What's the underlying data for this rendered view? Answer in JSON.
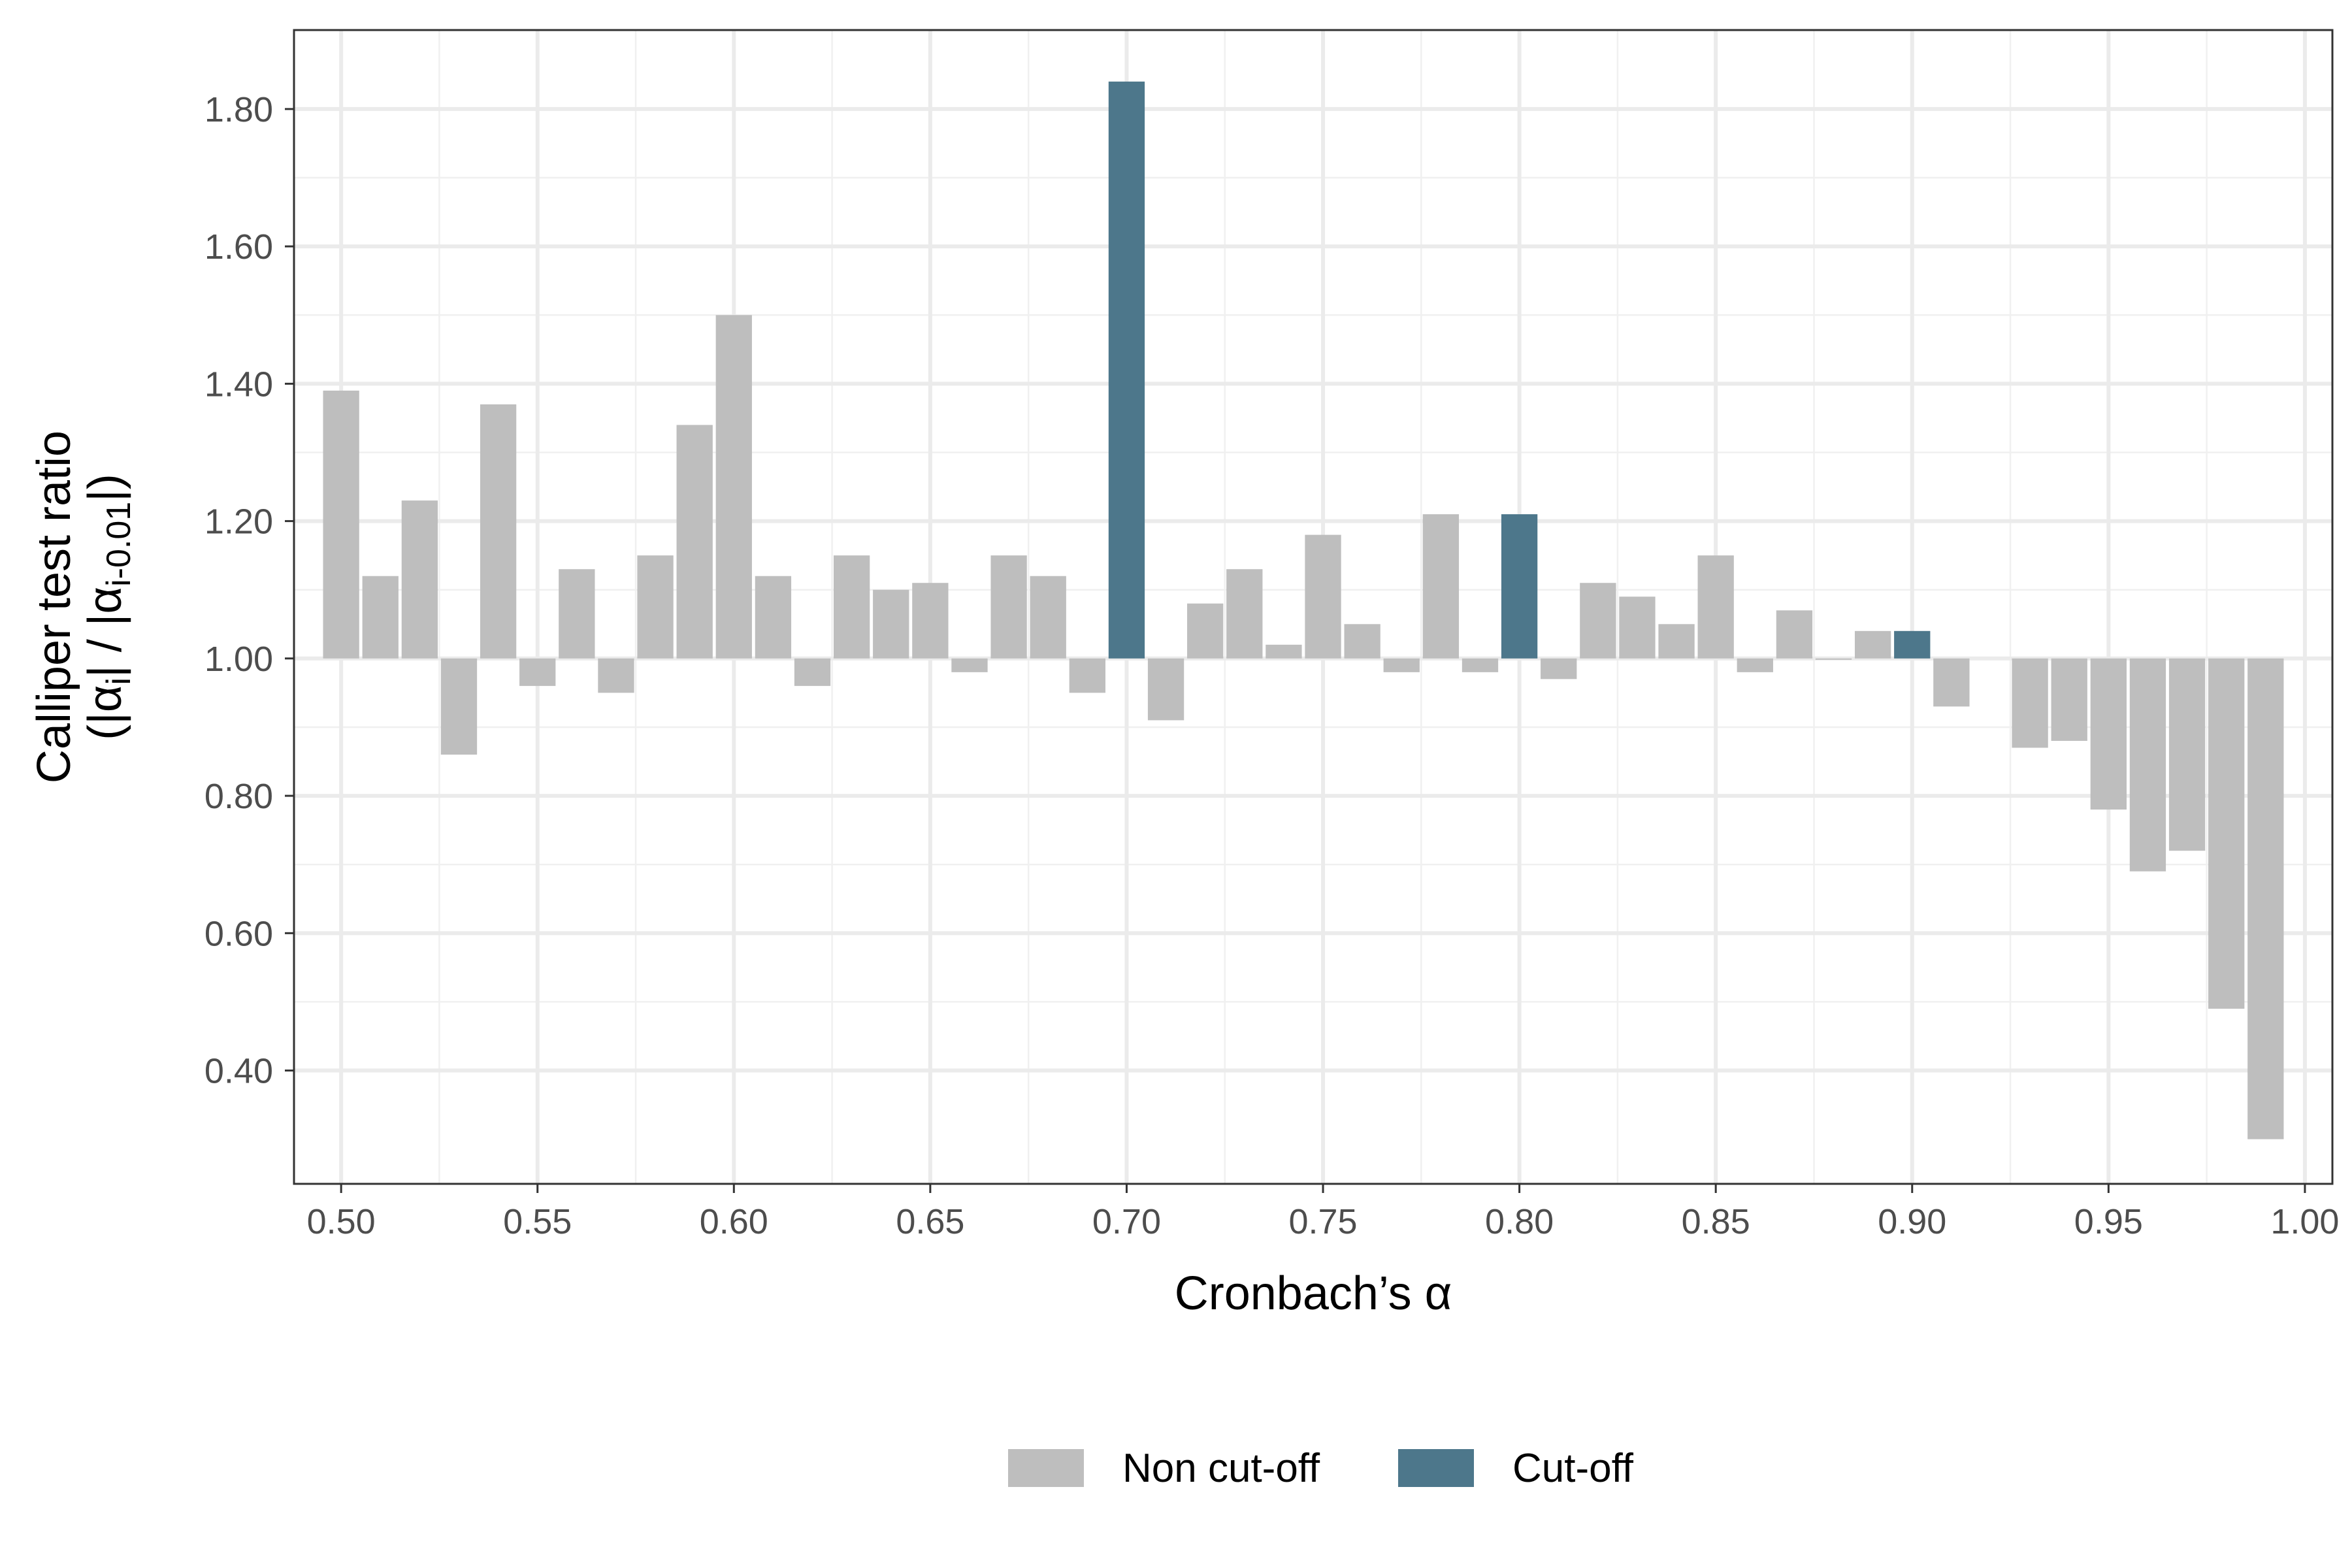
{
  "chart_data": {
    "type": "bar",
    "xlabel": "Cronbach’s α",
    "ylabel": {
      "line1": "Calliper test ratio",
      "line2_prefix": "(|α",
      "line2_sub1": "i",
      "line2_mid": "| / |α",
      "line2_sub2": "i-0.01",
      "line2_suffix": "|)"
    },
    "baseline": 1.0,
    "xlim": [
      0.488,
      1.007
    ],
    "ylim": [
      0.235,
      1.915
    ],
    "x_ticks": [
      "0.50",
      "0.55",
      "0.60",
      "0.65",
      "0.70",
      "0.75",
      "0.80",
      "0.85",
      "0.90",
      "0.95",
      "1.00"
    ],
    "y_ticks": [
      "0.40",
      "0.60",
      "0.80",
      "1.00",
      "1.20",
      "1.40",
      "1.60",
      "1.80"
    ],
    "grid": true,
    "legend_position": "bottom",
    "colors": {
      "Non cut-off": "#bebebe",
      "Cut-off": "#4d778b"
    },
    "legend": [
      {
        "label": "Non cut-off",
        "color": "#bebebe"
      },
      {
        "label": "Cut-off",
        "color": "#4d778b"
      }
    ],
    "bars": [
      {
        "x": 0.5,
        "value": 1.39,
        "group": "Non cut-off"
      },
      {
        "x": 0.51,
        "value": 1.12,
        "group": "Non cut-off"
      },
      {
        "x": 0.52,
        "value": 1.23,
        "group": "Non cut-off"
      },
      {
        "x": 0.53,
        "value": 0.86,
        "group": "Non cut-off"
      },
      {
        "x": 0.54,
        "value": 1.37,
        "group": "Non cut-off"
      },
      {
        "x": 0.55,
        "value": 0.96,
        "group": "Non cut-off"
      },
      {
        "x": 0.56,
        "value": 1.13,
        "group": "Non cut-off"
      },
      {
        "x": 0.57,
        "value": 0.95,
        "group": "Non cut-off"
      },
      {
        "x": 0.58,
        "value": 1.15,
        "group": "Non cut-off"
      },
      {
        "x": 0.59,
        "value": 1.34,
        "group": "Non cut-off"
      },
      {
        "x": 0.6,
        "value": 1.5,
        "group": "Non cut-off"
      },
      {
        "x": 0.61,
        "value": 1.12,
        "group": "Non cut-off"
      },
      {
        "x": 0.62,
        "value": 0.96,
        "group": "Non cut-off"
      },
      {
        "x": 0.63,
        "value": 1.15,
        "group": "Non cut-off"
      },
      {
        "x": 0.64,
        "value": 1.1,
        "group": "Non cut-off"
      },
      {
        "x": 0.65,
        "value": 1.11,
        "group": "Non cut-off"
      },
      {
        "x": 0.66,
        "value": 0.98,
        "group": "Non cut-off"
      },
      {
        "x": 0.67,
        "value": 1.15,
        "group": "Non cut-off"
      },
      {
        "x": 0.68,
        "value": 1.12,
        "group": "Non cut-off"
      },
      {
        "x": 0.69,
        "value": 0.95,
        "group": "Non cut-off"
      },
      {
        "x": 0.7,
        "value": 1.84,
        "group": "Cut-off"
      },
      {
        "x": 0.71,
        "value": 0.91,
        "group": "Non cut-off"
      },
      {
        "x": 0.72,
        "value": 1.08,
        "group": "Non cut-off"
      },
      {
        "x": 0.73,
        "value": 1.13,
        "group": "Non cut-off"
      },
      {
        "x": 0.74,
        "value": 1.02,
        "group": "Non cut-off"
      },
      {
        "x": 0.75,
        "value": 1.18,
        "group": "Non cut-off"
      },
      {
        "x": 0.76,
        "value": 1.05,
        "group": "Non cut-off"
      },
      {
        "x": 0.77,
        "value": 0.98,
        "group": "Non cut-off"
      },
      {
        "x": 0.78,
        "value": 1.21,
        "group": "Non cut-off"
      },
      {
        "x": 0.79,
        "value": 0.98,
        "group": "Non cut-off"
      },
      {
        "x": 0.8,
        "value": 1.21,
        "group": "Cut-off"
      },
      {
        "x": 0.81,
        "value": 0.97,
        "group": "Non cut-off"
      },
      {
        "x": 0.82,
        "value": 1.11,
        "group": "Non cut-off"
      },
      {
        "x": 0.83,
        "value": 1.09,
        "group": "Non cut-off"
      },
      {
        "x": 0.84,
        "value": 1.05,
        "group": "Non cut-off"
      },
      {
        "x": 0.85,
        "value": 1.15,
        "group": "Non cut-off"
      },
      {
        "x": 0.86,
        "value": 0.98,
        "group": "Non cut-off"
      },
      {
        "x": 0.87,
        "value": 1.07,
        "group": "Non cut-off"
      },
      {
        "x": 0.88,
        "value": 1.0,
        "group": "Non cut-off"
      },
      {
        "x": 0.89,
        "value": 1.04,
        "group": "Non cut-off"
      },
      {
        "x": 0.9,
        "value": 1.04,
        "group": "Cut-off"
      },
      {
        "x": 0.91,
        "value": 0.93,
        "group": "Non cut-off"
      },
      {
        "x": 0.93,
        "value": 0.87,
        "group": "Non cut-off"
      },
      {
        "x": 0.94,
        "value": 0.88,
        "group": "Non cut-off"
      },
      {
        "x": 0.95,
        "value": 0.78,
        "group": "Non cut-off"
      },
      {
        "x": 0.96,
        "value": 0.69,
        "group": "Non cut-off"
      },
      {
        "x": 0.97,
        "value": 0.72,
        "group": "Non cut-off"
      },
      {
        "x": 0.98,
        "value": 0.49,
        "group": "Non cut-off"
      },
      {
        "x": 0.99,
        "value": 0.3,
        "group": "Non cut-off"
      }
    ]
  }
}
